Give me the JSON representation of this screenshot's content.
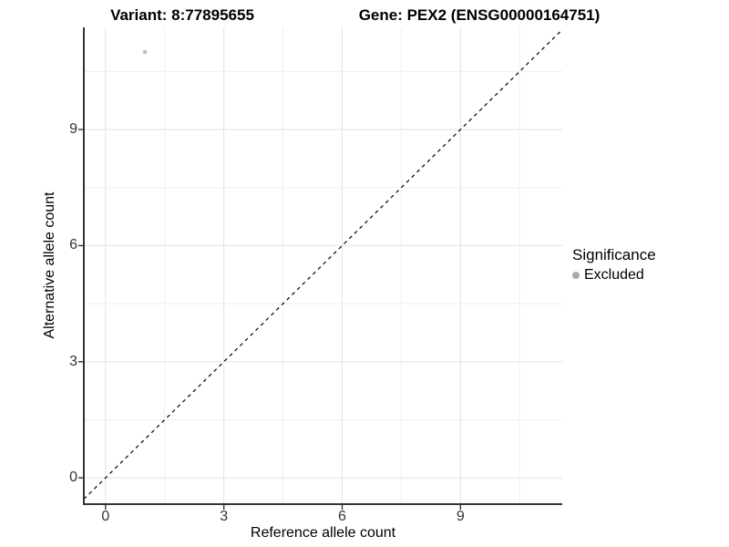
{
  "chart_data": {
    "type": "scatter",
    "title_left": "Variant: 8:77895655",
    "title_right": "Gene: PEX2 (ENSG00000164751)",
    "xlabel": "Reference allele count",
    "ylabel": "Alternative allele count",
    "xlim": [
      -0.55,
      11.58
    ],
    "ylim": [
      -0.68,
      11.64
    ],
    "xticks": [
      0,
      3,
      6,
      9
    ],
    "yticks": [
      0,
      3,
      6,
      9
    ],
    "minor_ticks": [
      1.5,
      4.5,
      7.5,
      10.5
    ],
    "grid": true,
    "points": [
      {
        "x": 1,
        "y": 11,
        "series": "Excluded"
      }
    ],
    "reference_line": {
      "slope": 1,
      "intercept": 0,
      "style": "dashed"
    },
    "legend": {
      "position": "right",
      "title": "Significance",
      "items": [
        {
          "label": "Excluded",
          "color": "#a9a9a9"
        }
      ]
    },
    "colors": {
      "background": "#ffffff",
      "grid_major": "#e2e2e2",
      "grid_minor": "#efefef",
      "axis_line": "#333333",
      "tick_label": "#333333",
      "point": "#bdbdbd",
      "reference_line": "#000000"
    }
  }
}
